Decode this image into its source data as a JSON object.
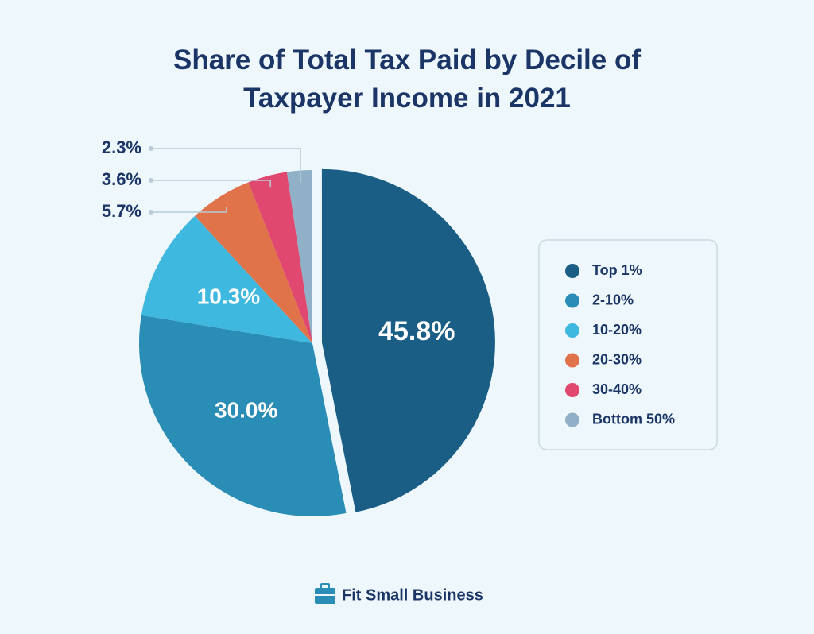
{
  "chart_data": {
    "type": "pie",
    "title": "Share of Total Tax Paid by Decile of Taxpayer Income in 2021",
    "categories": [
      "Top 1%",
      "2-10%",
      "10-20%",
      "20-30%",
      "30-40%",
      "Bottom 50%"
    ],
    "values": [
      45.8,
      30.0,
      10.3,
      5.7,
      3.6,
      2.3
    ],
    "value_labels": [
      "45.8%",
      "30.0%",
      "10.3%",
      "5.7%",
      "3.6%",
      "2.3%"
    ],
    "colors": [
      "#1a5e86",
      "#2a8db5",
      "#3fb8e0",
      "#e0734a",
      "#e04870",
      "#8fb0c6"
    ],
    "legend": "right"
  },
  "brand": "Fit Small Business"
}
